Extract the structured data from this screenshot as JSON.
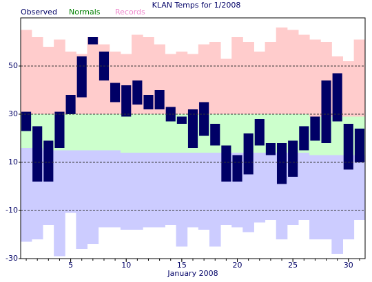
{
  "chart_data": {
    "type": "range",
    "title": "KLAN Temps for 1/2008",
    "xlabel": "January 2008",
    "x": [
      1,
      2,
      3,
      4,
      5,
      6,
      7,
      8,
      9,
      10,
      11,
      12,
      13,
      14,
      15,
      16,
      17,
      18,
      19,
      20,
      21,
      22,
      23,
      24,
      25,
      26,
      27,
      28,
      29,
      30,
      31
    ],
    "xlim": [
      0.5,
      31.5
    ],
    "xticks": [
      5,
      10,
      15,
      20,
      25,
      30
    ],
    "ylim": [
      -30,
      70
    ],
    "yticks": [
      -30,
      -10,
      10,
      30,
      50
    ],
    "grid": true,
    "series": [
      {
        "name": "Records",
        "color": "#ffcccc",
        "text_color": "#ee88cc",
        "high": [
          65,
          62,
          58,
          61,
          56,
          55,
          62,
          59,
          56,
          55,
          63,
          62,
          59,
          55,
          56,
          55,
          59,
          60,
          53,
          62,
          60,
          56,
          60,
          66,
          65,
          63,
          61,
          60,
          54,
          52,
          61
        ],
        "low": [
          -23,
          -22,
          -16,
          -29,
          -11,
          -26,
          -24,
          -17,
          -17,
          -18,
          -18,
          -17,
          -17,
          -16,
          -25,
          -17,
          -18,
          -25,
          -16,
          -17,
          -19,
          -15,
          -14,
          -22,
          -16,
          -14,
          -22,
          -22,
          -28,
          -22,
          -14
        ]
      },
      {
        "name": "Normals",
        "color": "#ccffcc",
        "low_color": "#ccccff",
        "text_color": "#008000",
        "high": [
          30,
          30,
          30,
          30,
          30,
          30,
          30,
          30,
          30,
          30,
          30,
          30,
          30,
          30,
          30,
          30,
          30,
          30,
          30,
          30,
          30,
          30,
          30,
          30,
          30,
          30,
          29,
          29,
          29,
          29,
          29
        ],
        "low": [
          16,
          16,
          15,
          15,
          15,
          15,
          15,
          15,
          15,
          14,
          14,
          14,
          14,
          14,
          14,
          14,
          14,
          14,
          14,
          14,
          14,
          14,
          14,
          14,
          14,
          14,
          13,
          13,
          13,
          13,
          13
        ]
      },
      {
        "name": "Observed",
        "color": "#000066",
        "text_color": "#000066",
        "high": [
          31,
          25,
          19,
          31,
          38,
          54,
          62,
          56,
          43,
          42,
          44,
          38,
          40,
          33,
          29,
          32,
          35,
          26,
          17,
          13,
          22,
          28,
          18,
          18,
          19,
          25,
          29,
          44,
          47,
          26,
          24
        ],
        "low": [
          23,
          2,
          2,
          16,
          30,
          37,
          59,
          44,
          35,
          29,
          34,
          32,
          32,
          27,
          26,
          16,
          21,
          17,
          2,
          2,
          5,
          17,
          13,
          1,
          4,
          15,
          19,
          18,
          27,
          7,
          10
        ]
      }
    ]
  }
}
